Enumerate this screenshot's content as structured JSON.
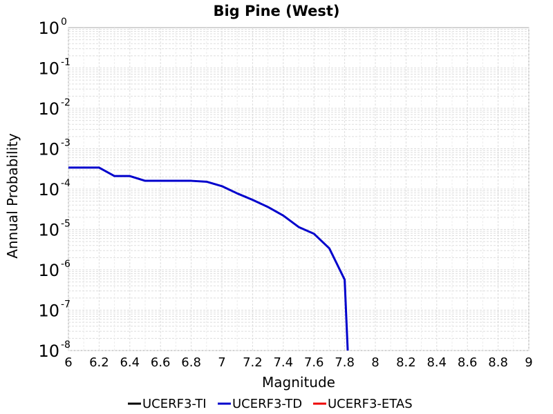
{
  "chart_data": {
    "type": "line",
    "title": "Big Pine (West)",
    "xlabel": "Magnitude",
    "ylabel": "Annual Probability",
    "xlim": [
      6,
      9
    ],
    "ylim": [
      1e-08,
      1
    ],
    "yscale": "log",
    "grid": true,
    "legend_position": "bottom",
    "x_ticks": [
      "6",
      "6.2",
      "6.4",
      "6.6",
      "6.8",
      "7",
      "7.2",
      "7.4",
      "7.6",
      "7.8",
      "8",
      "8.2",
      "8.4",
      "8.6",
      "8.8",
      "9"
    ],
    "y_ticks": [
      {
        "base": "10",
        "exp": "0"
      },
      {
        "base": "10",
        "exp": "-1"
      },
      {
        "base": "10",
        "exp": "-2"
      },
      {
        "base": "10",
        "exp": "-3"
      },
      {
        "base": "10",
        "exp": "-4"
      },
      {
        "base": "10",
        "exp": "-5"
      },
      {
        "base": "10",
        "exp": "-6"
      },
      {
        "base": "10",
        "exp": "-7"
      },
      {
        "base": "10",
        "exp": "-8"
      }
    ],
    "series": [
      {
        "name": "UCERF3-TI",
        "color": "#000000",
        "x": [],
        "y": []
      },
      {
        "name": "UCERF3-TD",
        "color": "#0000cc",
        "x": [
          6.0,
          6.1,
          6.2,
          6.3,
          6.4,
          6.5,
          6.6,
          6.7,
          6.8,
          6.9,
          7.0,
          7.1,
          7.2,
          7.3,
          7.4,
          7.5,
          7.6,
          7.7,
          7.8,
          7.82
        ],
        "y": [
          0.00034,
          0.00034,
          0.00034,
          0.00021,
          0.00021,
          0.00016,
          0.00016,
          0.00016,
          0.00016,
          0.000152,
          0.000118,
          7.8e-05,
          5.4e-05,
          3.6e-05,
          2.2e-05,
          1.15e-05,
          7.8e-06,
          3.4e-06,
          5.7e-07,
          1e-08
        ]
      },
      {
        "name": "UCERF3-ETAS",
        "color": "#ee0000",
        "x": [],
        "y": []
      }
    ]
  }
}
